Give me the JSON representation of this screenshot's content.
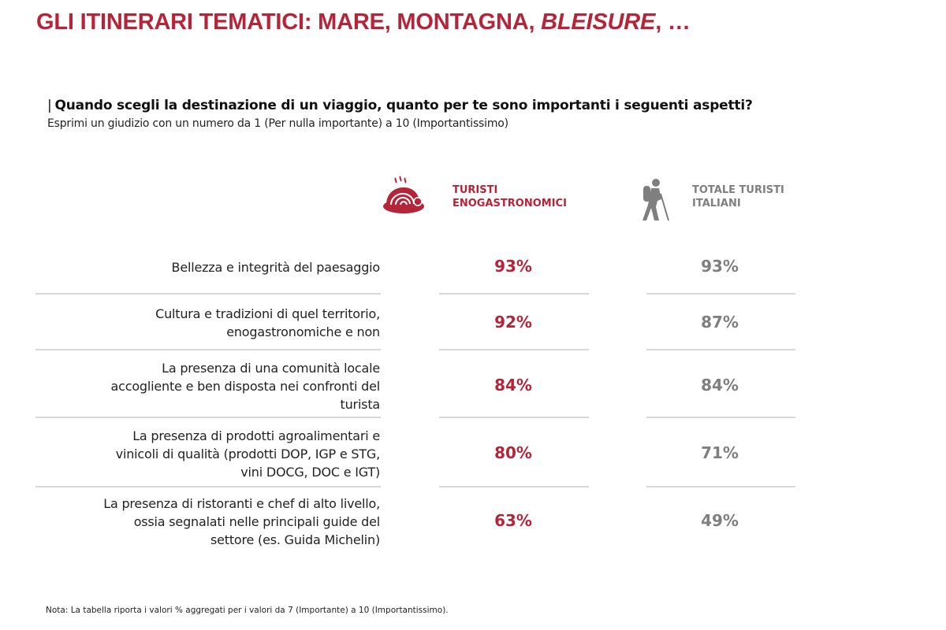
{
  "title": {
    "main": "GLI ITINERARI TEMATICI: MARE, MONTAGNA, ",
    "italic": "BLEISURE",
    "tail": ", …"
  },
  "question": {
    "bar": "|",
    "text": "Quando scegli la destinazione di un viaggio, quanto per te sono importanti i seguenti aspetti?",
    "subtitle": "Esprimi un giudizio con un numero da 1 (Per nulla importante) a 10 (Importantissimo)"
  },
  "colors": {
    "accent": "#b5253a",
    "secondary": "#7f7f7f"
  },
  "chart_data": {
    "type": "table",
    "columns": [
      {
        "line1": "TURISTI",
        "line2": "ENOGASTRONOMICI",
        "icon": "food-plate-icon",
        "color": "#b5253a"
      },
      {
        "line1": "TOTALE TURISTI",
        "line2": "ITALIANI",
        "icon": "hiker-icon",
        "color": "#7f7f7f"
      }
    ],
    "rows": [
      {
        "label": [
          "Bellezza e integrità del paesaggio"
        ],
        "values": [
          "93%",
          "93%"
        ]
      },
      {
        "label": [
          "Cultura e tradizioni di quel territorio,",
          "enogastronomiche e non"
        ],
        "values": [
          "92%",
          "87%"
        ]
      },
      {
        "label": [
          "La presenza di una comunità locale",
          "accogliente e ben disposta nei confronti del",
          "turista"
        ],
        "values": [
          "84%",
          "84%"
        ]
      },
      {
        "label": [
          "La presenza di prodotti agroalimentari e",
          "vinicoli di qualità (prodotti DOP, IGP e STG,",
          "vini DOCG, DOC e IGT)"
        ],
        "values": [
          "80%",
          "71%"
        ]
      },
      {
        "label": [
          "La presenza di ristoranti e chef di alto livello,",
          "ossia segnalati nelle principali guide del",
          "settore (es. Guida Michelin)"
        ],
        "values": [
          "63%",
          "49%"
        ]
      }
    ]
  },
  "note": "Nota: La tabella riporta i valori % aggregati per i valori da 7 (Importante) a 10 (Importantissimo)."
}
